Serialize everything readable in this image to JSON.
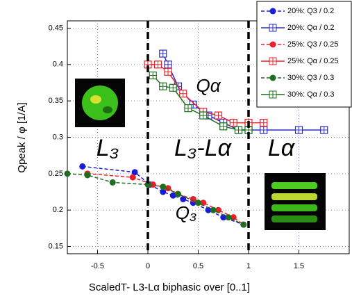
{
  "chart_data": {
    "type": "scatter",
    "x_label": "ScaledT- L3-Lα biphasic over [0..1]",
    "y_label": "Qpeak / φ [1/A]",
    "xlim": [
      -0.8,
      2.0
    ],
    "ylim": [
      0.14,
      0.46
    ],
    "xticks": [
      -0.5,
      0,
      0.5,
      1,
      1.5
    ],
    "yticks": [
      0.15,
      0.2,
      0.25,
      0.3,
      0.35,
      0.4,
      0.45
    ],
    "grid": true,
    "legend": "top-right",
    "vlines": [
      0,
      1
    ],
    "annotations": [
      "L₃",
      "L₃-Lα",
      "Lα",
      "Qα",
      "Q₃"
    ],
    "series": [
      {
        "name": "20%: Q3 / 0.2",
        "color": "#1a1adb",
        "marker": "circle",
        "dashed": true,
        "x": [
          -0.65,
          -0.13,
          0.02,
          0.15,
          0.25,
          0.35,
          0.45,
          0.6,
          0.75,
          0.95
        ],
        "values": [
          0.26,
          0.252,
          0.235,
          0.225,
          0.22,
          0.215,
          0.21,
          0.2,
          0.19,
          0.18
        ]
      },
      {
        "name": "20%: Qα / 0.2",
        "color": "#2b2bd0",
        "marker": "square",
        "dashed": false,
        "x": [
          0.15,
          0.2,
          0.3,
          0.45,
          0.6,
          0.75,
          0.9,
          1.0,
          1.15,
          1.5,
          1.75
        ],
        "values": [
          0.415,
          0.4,
          0.37,
          0.345,
          0.33,
          0.32,
          0.31,
          0.31,
          0.31,
          0.31,
          0.31
        ]
      },
      {
        "name": "25%: Q3 / 0.25",
        "color": "#e8202a",
        "marker": "circle",
        "dashed": true,
        "x": [
          -0.6,
          -0.15,
          0.05,
          0.2,
          0.3,
          0.45,
          0.55,
          0.7,
          0.85,
          0.95
        ],
        "values": [
          0.25,
          0.245,
          0.235,
          0.23,
          0.222,
          0.215,
          0.21,
          0.2,
          0.19,
          0.18
        ]
      },
      {
        "name": "25%: Qα / 0.25",
        "color": "#e8202a",
        "marker": "square",
        "dashed": false,
        "x": [
          0.0,
          0.1,
          0.2,
          0.35,
          0.55,
          0.7,
          0.85,
          1.0,
          1.15
        ],
        "values": [
          0.4,
          0.4,
          0.39,
          0.36,
          0.335,
          0.33,
          0.32,
          0.32,
          0.32
        ]
      },
      {
        "name": "30%: Q3 / 0.3",
        "color": "#1f6e1f",
        "marker": "circle",
        "dashed": true,
        "x": [
          -0.8,
          -0.6,
          -0.35,
          0.0,
          0.15,
          0.3,
          0.5,
          0.65,
          0.8,
          0.95
        ],
        "values": [
          0.25,
          0.248,
          0.238,
          0.235,
          0.232,
          0.222,
          0.21,
          0.2,
          0.19,
          0.18
        ]
      },
      {
        "name": "30%: Qα / 0.3",
        "color": "#1f6e1f",
        "marker": "square",
        "dashed": false,
        "x": [
          0.05,
          0.15,
          0.25,
          0.4,
          0.55,
          0.75,
          0.9,
          1.0
        ],
        "values": [
          0.385,
          0.37,
          0.368,
          0.34,
          0.33,
          0.315,
          0.31,
          0.31
        ]
      }
    ]
  }
}
